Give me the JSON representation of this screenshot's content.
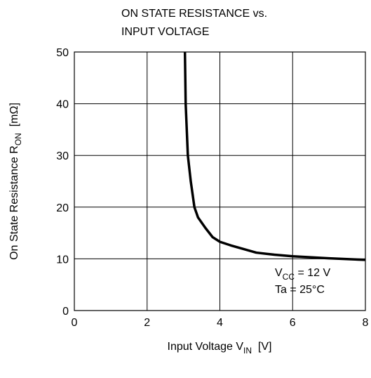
{
  "chart_data": {
    "type": "line",
    "title": [
      "ON STATE RESISTANCE vs.",
      "INPUT VOLTAGE"
    ],
    "xlabel": {
      "text": "Input Voltage  V",
      "sub": "IN",
      "unit": "[V]"
    },
    "ylabel": {
      "text": "On State Resistance  R",
      "sub": "ON",
      "unit": "[mΩ]"
    },
    "annotations": [
      {
        "text": "V",
        "sub": "CC",
        "rest": " = 12 V"
      },
      {
        "text": "Ta = 25°C"
      }
    ],
    "series": [
      {
        "color": "#000000",
        "x": [
          3.04,
          3.06,
          3.12,
          3.2,
          3.3,
          3.4,
          3.6,
          3.8,
          4,
          4.3,
          4.6,
          5,
          5.5,
          6,
          7,
          8
        ],
        "values": [
          50,
          40,
          30,
          25,
          20,
          18,
          16,
          14.2,
          13.3,
          12.6,
          12,
          11.2,
          10.8,
          10.5,
          10.1,
          9.8
        ]
      }
    ],
    "xlim": [
      0,
      8
    ],
    "xticks": [
      0,
      2,
      4,
      6,
      8
    ],
    "ylim": [
      0,
      50
    ],
    "yticks": [
      0,
      10,
      20,
      30,
      40,
      50
    ],
    "grid": true
  }
}
